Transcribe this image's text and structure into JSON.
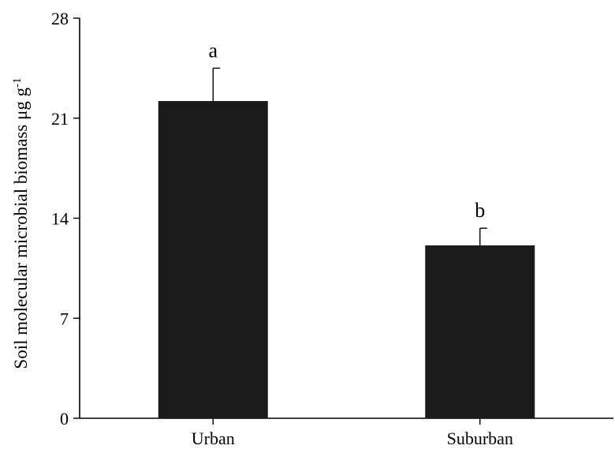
{
  "chart_data": {
    "type": "bar",
    "title": "",
    "categories": [
      "Urban",
      "Suburban"
    ],
    "values": [
      22.2,
      12.1
    ],
    "errors": [
      2.3,
      1.2
    ],
    "significance_letters": [
      "a",
      "b"
    ],
    "xlabel": "",
    "ylabel": {
      "text": "Soil molecular microbial biomass μg g",
      "superscript": "-1"
    },
    "ylim": [
      0,
      28
    ],
    "yticks": [
      "0",
      "7",
      "14",
      "21",
      "28"
    ],
    "bar_color": "#1a1a1a",
    "grid": false,
    "legend": "none"
  }
}
